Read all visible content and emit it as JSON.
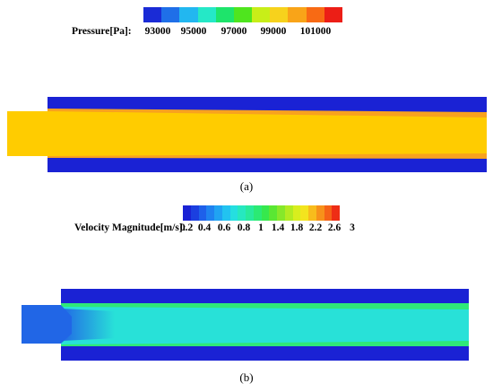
{
  "figure": {
    "pressure": {
      "label": "Pressure[Pa]:",
      "ticks": [
        "93000",
        "95000",
        "97000",
        "99000",
        "101000"
      ],
      "colors": [
        "#1a2bd6",
        "#1f6fe8",
        "#22b7f0",
        "#25e8c7",
        "#1ee46b",
        "#4fe51e",
        "#c8ee18",
        "#f7d21c",
        "#f9a418",
        "#f86a14",
        "#ec1e16"
      ],
      "caption": "(a)"
    },
    "velocity": {
      "label": "Velocity Magnitude[m/s]:",
      "ticks": [
        "0.2",
        "0.4",
        "0.6",
        "0.8",
        "1",
        "1.4",
        "1.8",
        "2.2",
        "2.6",
        "3"
      ],
      "colors": [
        "#1a22d4",
        "#1b3fe0",
        "#1e60ea",
        "#1f82f0",
        "#20a3f2",
        "#22c3f0",
        "#25dfe0",
        "#26e8c0",
        "#28ea9c",
        "#2bea74",
        "#36e84d",
        "#5ae733",
        "#86e82a",
        "#b2eb22",
        "#d8ee1e",
        "#f3e41e",
        "#f8bc1c",
        "#f7911a",
        "#f56217",
        "#ee2d15"
      ],
      "caption": "(b)"
    },
    "field_colors": {
      "wall": "#1a22d4",
      "core_a": "#ffcc00",
      "edge_a": "#f8a21e",
      "inlet_b": "#2166e6",
      "core_b": "#28e1d8",
      "edge_b": "#2fe878"
    }
  }
}
